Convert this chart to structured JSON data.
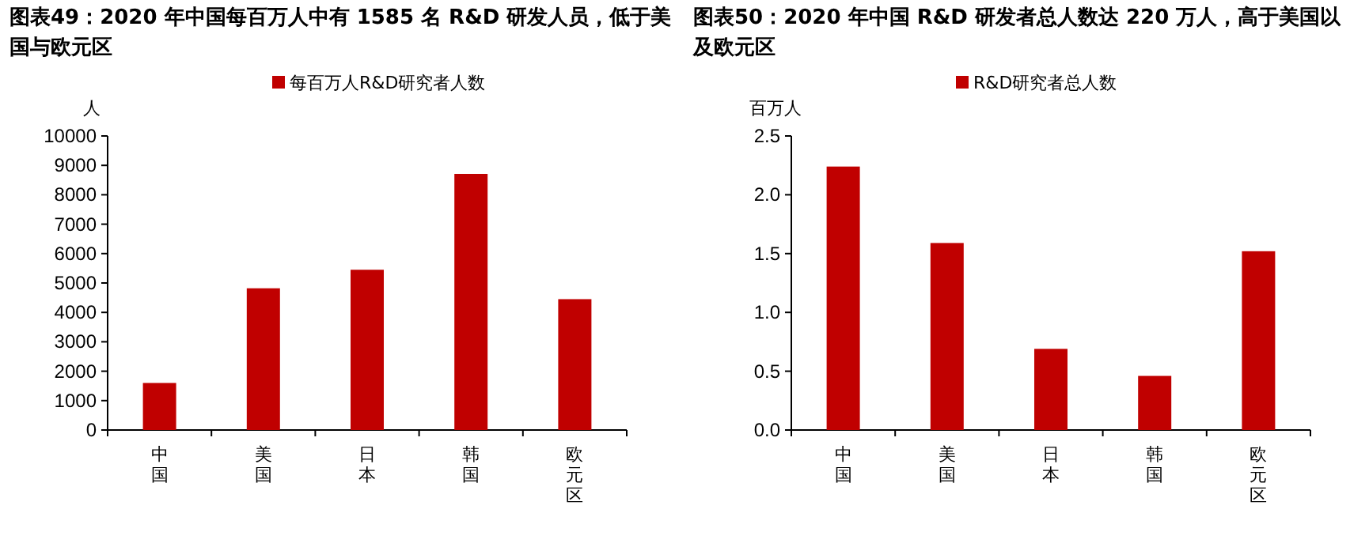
{
  "chart_data": [
    {
      "type": "bar",
      "title": "图表49：2020 年中国每百万人中有 1585 名 R&D 研发人员，低于美国与欧元区",
      "ylabel": "人",
      "categories": [
        "中国",
        "美国",
        "日本",
        "韩国",
        "欧元区"
      ],
      "series": [
        {
          "name": "每百万人R&D研究者人数",
          "color": "#c00000",
          "values": [
            1600,
            4820,
            5450,
            8710,
            4450
          ]
        }
      ],
      "ylim": [
        0,
        10000
      ],
      "yticks": [
        0,
        1000,
        2000,
        3000,
        4000,
        5000,
        6000,
        7000,
        8000,
        9000,
        10000
      ],
      "legend": "top",
      "grid": false
    },
    {
      "type": "bar",
      "title": "图表50：2020 年中国 R&D 研发者总人数达 220 万人，高于美国以及欧元区",
      "ylabel": "百万人",
      "categories": [
        "中国",
        "美国",
        "日本",
        "韩国",
        "欧元区"
      ],
      "series": [
        {
          "name": "R&D研究者总人数",
          "color": "#c00000",
          "values": [
            2.24,
            1.59,
            0.69,
            0.46,
            1.52
          ]
        }
      ],
      "ylim": [
        0,
        2.5
      ],
      "yticks": [
        {
          "value": 0,
          "label": "0.0"
        },
        {
          "value": 0.5,
          "label": "0.5"
        },
        {
          "value": 1,
          "label": "1.0"
        },
        {
          "value": 1.5,
          "label": "1.5"
        },
        {
          "value": 2,
          "label": "2.0"
        },
        {
          "value": 2.5,
          "label": "2.5"
        }
      ],
      "legend": "top",
      "grid": false
    }
  ]
}
